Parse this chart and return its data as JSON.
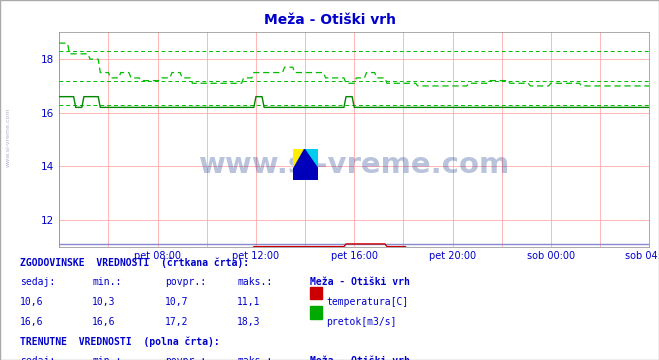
{
  "title": "Meža - Otiški vrh",
  "title_color": "#0000cc",
  "bg_color": "#ffffff",
  "plot_bg_color": "#ffffff",
  "grid_color": "#ffaaaa",
  "axis_color": "#0000cc",
  "text_color": "#0000cc",
  "border_color": "#aaaaaa",
  "watermark_text": "www.si-vreme.com",
  "watermark_color": "#1a3a8a",
  "sidebar_text": "www.si-vreme.com",
  "sidebar_color": "#aaaacc",
  "ylim": [
    11.0,
    19.0
  ],
  "yticks": [
    12,
    14,
    16,
    18
  ],
  "xlim": [
    0,
    288
  ],
  "xtick_labels": [
    "pet 08:00",
    "pet 12:00",
    "pet 16:00",
    "pet 20:00",
    "sob 00:00",
    "sob 04:00"
  ],
  "xtick_positions": [
    48,
    96,
    144,
    192,
    240,
    288
  ],
  "n_points": 289,
  "temp_solid_color": "#cc0000",
  "temp_dashed_color": "#dd4444",
  "flow_solid_color": "#008800",
  "flow_dashed_color": "#00bb00",
  "flow_historical_avg": 17.2,
  "flow_historical_min": 16.3,
  "flow_historical_max": 18.3,
  "temp_historical_avg": 10.7,
  "temp_historical_min": 10.3,
  "temp_historical_max": 11.1,
  "baseline_color": "#8888cc"
}
